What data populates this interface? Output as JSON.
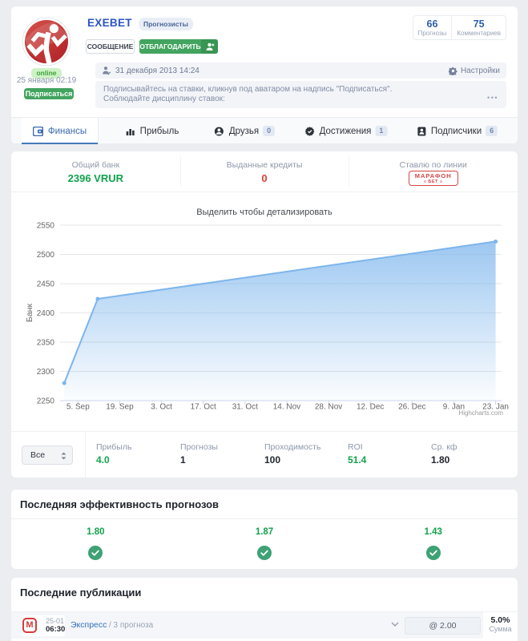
{
  "profile": {
    "name": "EXEBET",
    "role_badge": "Прогнозисты",
    "online_status": "online",
    "last_seen": "25 января 02:19",
    "subscribe_button": "Подписаться",
    "message_button": "СООБЩЕНИЕ",
    "thank_button": "ОТБЛАГОДАРИТЬ",
    "stats": [
      {
        "value": "66",
        "label": "Прогнозы"
      },
      {
        "value": "75",
        "label": "Комментариев"
      }
    ],
    "registered": "31 декабря 2013 14:24",
    "settings_label": "Настройки",
    "bio_line1": "Подписывайтесь на ставки, кликнув под аватаром на надпись \"Подписаться\".",
    "bio_line2": "Соблюдайте дисциплину ставок:",
    "bio_more": "•••"
  },
  "tabs": [
    {
      "label": "Финансы",
      "active": true
    },
    {
      "label": "Прибыль"
    },
    {
      "label": "Друзья",
      "count": "0"
    },
    {
      "label": "Достижения",
      "count": "1"
    },
    {
      "label": "Подписчики",
      "count": "6"
    }
  ],
  "finance_summary": [
    {
      "label": "Общий банк",
      "value": "2396 VRUR"
    },
    {
      "label": "Выданные кредиты",
      "value": "0"
    },
    {
      "label": "Ставлю по линии"
    }
  ],
  "bookmaker_logo": {
    "line1": "МАРАФОН",
    "line2": "≡ БЕТ ≡"
  },
  "chart_data": {
    "type": "area",
    "title": "Выделить чтобы детализировать",
    "yaxis_title": "Банк",
    "ylim": [
      2250,
      2550
    ],
    "yticks": [
      2250,
      2300,
      2350,
      2400,
      2450,
      2500,
      2550
    ],
    "xlim_days": [
      -6,
      142
    ],
    "xticks": [
      {
        "day": 0,
        "label": "5. Sep"
      },
      {
        "day": 14,
        "label": "19. Sep"
      },
      {
        "day": 28,
        "label": "3. Oct"
      },
      {
        "day": 42,
        "label": "17. Oct"
      },
      {
        "day": 56,
        "label": "31. Oct"
      },
      {
        "day": 70,
        "label": "14. Nov"
      },
      {
        "day": 84,
        "label": "28. Nov"
      },
      {
        "day": 98,
        "label": "12. Dec"
      },
      {
        "day": 112,
        "label": "26. Dec"
      },
      {
        "day": 126,
        "label": "9. Jan"
      },
      {
        "day": 140,
        "label": "23. Jan"
      }
    ],
    "series": [
      {
        "name": "Банк",
        "points": [
          {
            "day": -4.6,
            "date": "31 Aug",
            "value": 2280
          },
          {
            "day": 6.6,
            "date": "11 Sep",
            "value": 2424
          },
          {
            "day": 140,
            "date": "23 Jan",
            "value": 2522
          }
        ]
      }
    ],
    "line_color": "#7cb5ec",
    "grid_color": "#e6e6e6",
    "axis_line_color": "#ccd6eb",
    "label_color": "#666666",
    "credits": "Highcharts.com"
  },
  "filter": {
    "select_value": "Все",
    "stats": [
      {
        "label": "Прибыль",
        "value": "4.0",
        "green": true
      },
      {
        "label": "Прогнозы",
        "value": "1"
      },
      {
        "label": "Проходимость",
        "value": "100"
      },
      {
        "label": "ROI",
        "value": "51.4",
        "green": true
      },
      {
        "label": "Ср. кф",
        "value": "1.80"
      }
    ]
  },
  "effectiveness": {
    "title": "Последняя эффективность прогнозов",
    "items": [
      {
        "value": "1.80"
      },
      {
        "value": "1.87"
      },
      {
        "value": "1.43"
      }
    ]
  },
  "publications": {
    "title": "Последние публикации",
    "row": {
      "logo_letter": "М",
      "date": "25-01",
      "time": "06:30",
      "title": "Экспресс",
      "subtitle": "/ 3 прогноза",
      "odds": "@ 2.00",
      "stake_pct": "5.0%",
      "stake_label": "Сумма"
    }
  },
  "colors": {
    "accent_blue": "#2b54c5",
    "link_blue": "#3470bd",
    "green": "#12a24c",
    "button_green": "#42a45f",
    "red": "#d94040",
    "page_bg": "#ebedf0"
  }
}
